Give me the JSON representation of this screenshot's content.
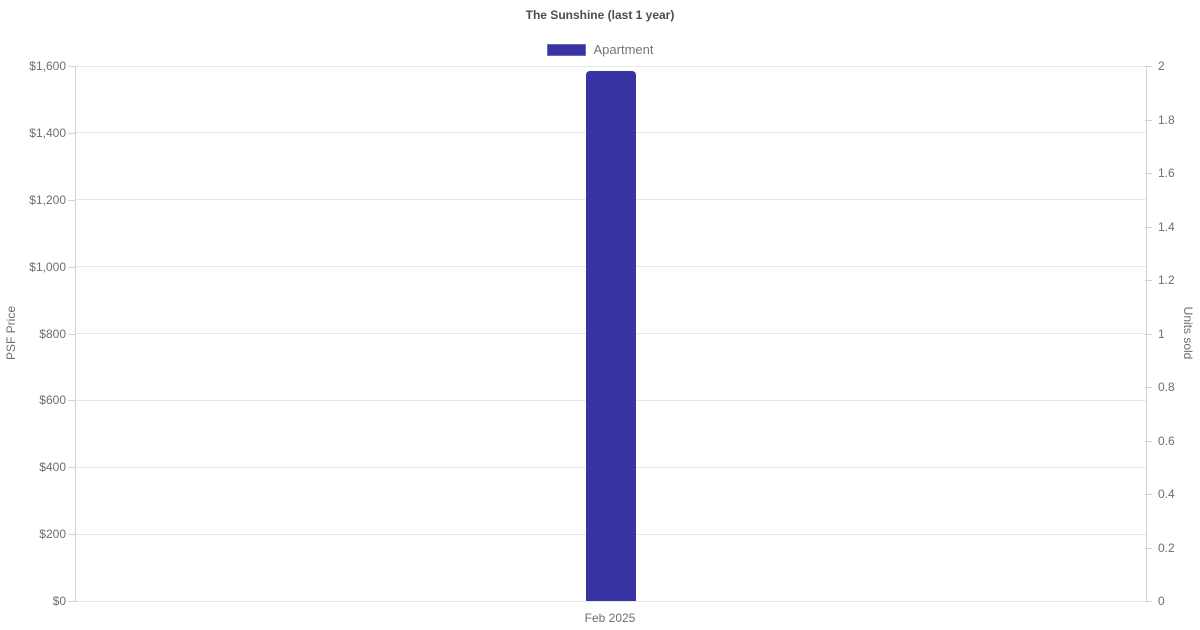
{
  "chart_data": {
    "type": "bar",
    "title": "The Sunshine (last 1 year)",
    "categories": [
      "Feb 2025"
    ],
    "series": [
      {
        "name": "Apartment",
        "yaxis": "left",
        "values": [
          1586
        ],
        "color": "#3733a3"
      }
    ],
    "ylabel": "PSF Price",
    "y2label": "Units sold",
    "ylim": [
      0,
      1600
    ],
    "y2lim": [
      0,
      2
    ],
    "y_ticks": [
      {
        "value": 0,
        "label": "$0"
      },
      {
        "value": 200,
        "label": "$200"
      },
      {
        "value": 400,
        "label": "$400"
      },
      {
        "value": 600,
        "label": "$600"
      },
      {
        "value": 800,
        "label": "$800"
      },
      {
        "value": 1000,
        "label": "$1,000"
      },
      {
        "value": 1200,
        "label": "$1,200"
      },
      {
        "value": 1400,
        "label": "$1,400"
      },
      {
        "value": 1600,
        "label": "$1,600"
      }
    ],
    "y2_ticks": [
      {
        "value": 0,
        "label": "0"
      },
      {
        "value": 0.2,
        "label": "0.2"
      },
      {
        "value": 0.4,
        "label": "0.4"
      },
      {
        "value": 0.6,
        "label": "0.6"
      },
      {
        "value": 0.8,
        "label": "0.8"
      },
      {
        "value": 1,
        "label": "1"
      },
      {
        "value": 1.2,
        "label": "1.2"
      },
      {
        "value": 1.4,
        "label": "1.4"
      },
      {
        "value": 1.6,
        "label": "1.6"
      },
      {
        "value": 1.8,
        "label": "1.8"
      },
      {
        "value": 2,
        "label": "2"
      }
    ],
    "grid": true,
    "legend_position": "top"
  },
  "colors": {
    "bar": "#3733a3",
    "grid": "#e7e7e7",
    "axis_line": "#d2d2d2",
    "tick_text": "#6e6e6e",
    "title_text": "#4d4d4d",
    "legend_text": "#757575",
    "background": "#ffffff"
  }
}
